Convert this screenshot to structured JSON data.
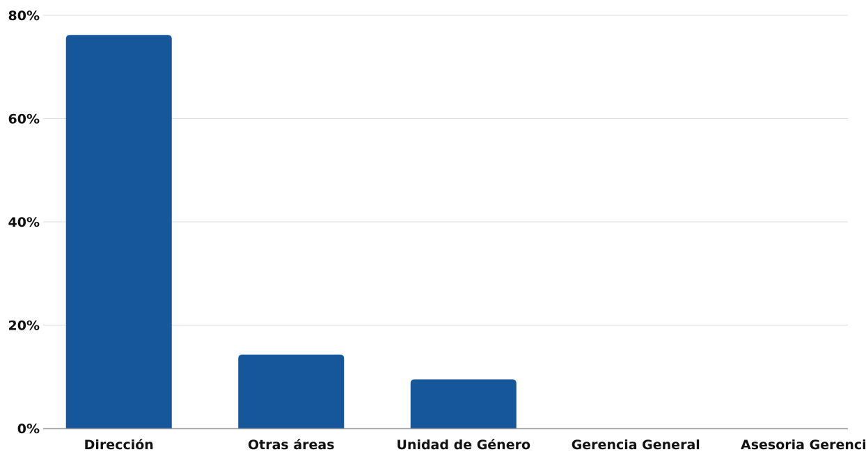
{
  "chart_data": {
    "type": "bar",
    "categories": [
      "Dirección",
      "Otras áreas",
      "Unidad de Género",
      "Gerencia General",
      "Asesoria Gerencia"
    ],
    "values": [
      76.2,
      14.3,
      9.5,
      0,
      0
    ],
    "ylim": [
      0,
      80
    ],
    "yticks": [
      0,
      20,
      40,
      60,
      80
    ],
    "ytick_labels": [
      "0%",
      "20%",
      "40%",
      "60%",
      "80%"
    ],
    "grid": true,
    "legend": "none",
    "bar_color": "#15579a",
    "grid_color": "#dcdcdc",
    "axis_color": "#999999"
  }
}
